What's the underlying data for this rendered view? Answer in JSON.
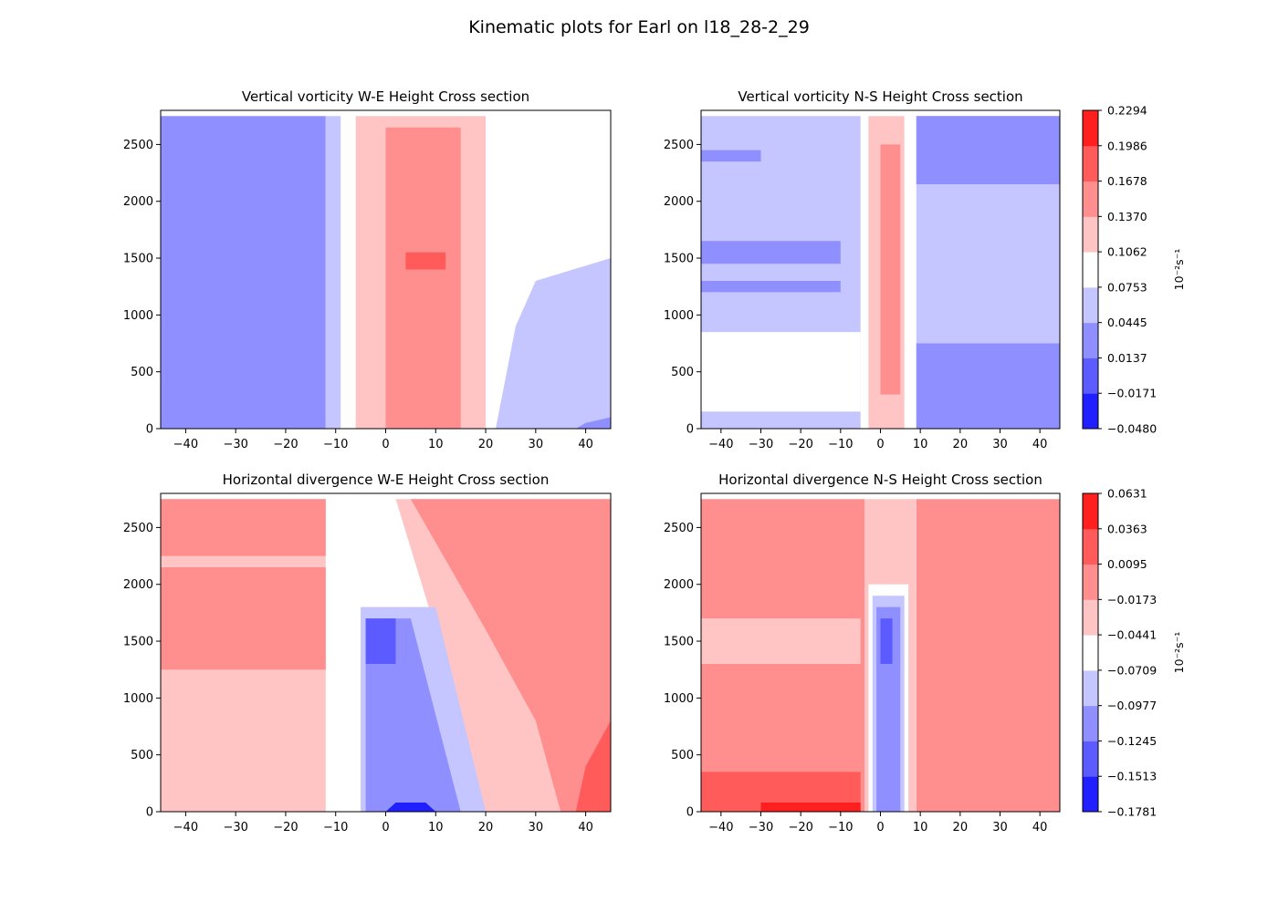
{
  "figure": {
    "title": "Kinematic plots for Earl on l18_28-2_29"
  },
  "colors": {
    "levels": [
      "#1f1fff",
      "#5b5bff",
      "#8f8fff",
      "#c5c5ff",
      "#ffffff",
      "#ffc5c5",
      "#ff8f8f",
      "#ff5b5b",
      "#ff1f1f"
    ]
  },
  "chart_data": [
    {
      "type": "contourf",
      "title": "Vertical vorticity W-E Height Cross section",
      "xlim": [
        -45,
        45
      ],
      "ylim": [
        0,
        2800
      ],
      "xticks": [
        -40,
        -30,
        -20,
        -10,
        0,
        10,
        20,
        30,
        40
      ],
      "yticks": [
        0,
        500,
        1000,
        1500,
        2000,
        2500
      ],
      "colorbar": {
        "levels": [
          "−0.0480",
          "−0.0171",
          "0.0137",
          "0.0445",
          "0.0753",
          "0.1062",
          "0.1370",
          "0.1678",
          "0.1986",
          "0.2294"
        ],
        "unit_label": "10⁻²s⁻¹"
      },
      "regions": [
        {
          "level": 2,
          "polygon": [
            [
              -45,
              0
            ],
            [
              -12,
              0
            ],
            [
              -12,
              2750
            ],
            [
              -45,
              2750
            ]
          ]
        },
        {
          "level": 3,
          "polygon": [
            [
              -12,
              0
            ],
            [
              -9,
              0
            ],
            [
              -9,
              2750
            ],
            [
              -12,
              2750
            ]
          ]
        },
        {
          "level": 3,
          "polygon": [
            [
              22,
              0
            ],
            [
              45,
              0
            ],
            [
              45,
              1500
            ],
            [
              30,
              1300
            ],
            [
              26,
              900
            ],
            [
              22,
              0
            ]
          ]
        },
        {
          "level": 2,
          "polygon": [
            [
              38,
              0
            ],
            [
              45,
              0
            ],
            [
              45,
              100
            ],
            [
              40,
              50
            ]
          ]
        },
        {
          "level": 5,
          "polygon": [
            [
              -6,
              0
            ],
            [
              20,
              0
            ],
            [
              20,
              2750
            ],
            [
              -6,
              2750
            ]
          ]
        },
        {
          "level": 6,
          "polygon": [
            [
              0,
              0
            ],
            [
              15,
              0
            ],
            [
              15,
              2650
            ],
            [
              0,
              2650
            ]
          ]
        },
        {
          "level": 7,
          "polygon": [
            [
              4,
              1400
            ],
            [
              12,
              1400
            ],
            [
              12,
              1550
            ],
            [
              4,
              1550
            ]
          ]
        }
      ]
    },
    {
      "type": "contourf",
      "title": "Vertical vorticity N-S Height Cross section",
      "xlim": [
        -45,
        45
      ],
      "ylim": [
        0,
        2800
      ],
      "xticks": [
        -40,
        -30,
        -20,
        -10,
        0,
        10,
        20,
        30,
        40
      ],
      "yticks": [
        0,
        500,
        1000,
        1500,
        2000,
        2500
      ],
      "colorbar": {
        "levels": [
          "−0.0480",
          "−0.0171",
          "0.0137",
          "0.0445",
          "0.0753",
          "0.1062",
          "0.1370",
          "0.1678",
          "0.1986",
          "0.2294"
        ],
        "unit_label": "10⁻²s⁻¹"
      },
      "regions": [
        {
          "level": 3,
          "polygon": [
            [
              -45,
              0
            ],
            [
              -5,
              0
            ],
            [
              -5,
              2750
            ],
            [
              -45,
              2750
            ]
          ]
        },
        {
          "level": 2,
          "polygon": [
            [
              -45,
              1450
            ],
            [
              -10,
              1450
            ],
            [
              -10,
              1650
            ],
            [
              -45,
              1650
            ]
          ]
        },
        {
          "level": 2,
          "polygon": [
            [
              -45,
              1200
            ],
            [
              -10,
              1200
            ],
            [
              -10,
              1300
            ],
            [
              -45,
              1300
            ]
          ]
        },
        {
          "level": 2,
          "polygon": [
            [
              -45,
              2350
            ],
            [
              -30,
              2350
            ],
            [
              -30,
              2450
            ],
            [
              -45,
              2450
            ]
          ]
        },
        {
          "level": 4,
          "polygon": [
            [
              -45,
              150
            ],
            [
              -5,
              150
            ],
            [
              -5,
              850
            ],
            [
              -45,
              850
            ]
          ]
        },
        {
          "level": 3,
          "polygon": [
            [
              9,
              0
            ],
            [
              45,
              0
            ],
            [
              45,
              2750
            ],
            [
              9,
              2750
            ]
          ]
        },
        {
          "level": 2,
          "polygon": [
            [
              9,
              0
            ],
            [
              45,
              0
            ],
            [
              45,
              750
            ],
            [
              9,
              750
            ]
          ]
        },
        {
          "level": 2,
          "polygon": [
            [
              9,
              2150
            ],
            [
              45,
              2150
            ],
            [
              45,
              2750
            ],
            [
              9,
              2750
            ]
          ]
        },
        {
          "level": 4,
          "polygon": [
            [
              -4,
              0
            ],
            [
              8,
              0
            ],
            [
              8,
              2750
            ],
            [
              -4,
              2750
            ]
          ]
        },
        {
          "level": 5,
          "polygon": [
            [
              -3,
              0
            ],
            [
              6,
              0
            ],
            [
              6,
              2750
            ],
            [
              -3,
              2750
            ]
          ]
        },
        {
          "level": 6,
          "polygon": [
            [
              0,
              300
            ],
            [
              5,
              300
            ],
            [
              5,
              2500
            ],
            [
              0,
              2500
            ]
          ]
        }
      ]
    },
    {
      "type": "contourf",
      "title": "Horizontal divergence W-E Height Cross section",
      "xlim": [
        -45,
        45
      ],
      "ylim": [
        0,
        2800
      ],
      "xticks": [
        -40,
        -30,
        -20,
        -10,
        0,
        10,
        20,
        30,
        40
      ],
      "yticks": [
        0,
        500,
        1000,
        1500,
        2000,
        2500
      ],
      "colorbar": {
        "levels": [
          "−0.1781",
          "−0.1513",
          "−0.1245",
          "−0.0977",
          "−0.0709",
          "−0.0441",
          "−0.0173",
          "0.0095",
          "0.0363",
          "0.0631"
        ],
        "unit_label": "10⁻²s⁻¹"
      },
      "regions": [
        {
          "level": 5,
          "polygon": [
            [
              -45,
              0
            ],
            [
              -12,
              0
            ],
            [
              -12,
              2750
            ],
            [
              -45,
              2750
            ]
          ]
        },
        {
          "level": 6,
          "polygon": [
            [
              -45,
              1250
            ],
            [
              -12,
              1250
            ],
            [
              -12,
              2150
            ],
            [
              -45,
              2150
            ]
          ]
        },
        {
          "level": 6,
          "polygon": [
            [
              -45,
              2250
            ],
            [
              -12,
              2250
            ],
            [
              -12,
              2750
            ],
            [
              -45,
              2750
            ]
          ]
        },
        {
          "level": 4,
          "polygon": [
            [
              -10,
              0
            ],
            [
              25,
              0
            ],
            [
              10,
              1500
            ],
            [
              0,
              2200
            ],
            [
              -10,
              2200
            ]
          ]
        },
        {
          "level": 5,
          "polygon": [
            [
              20,
              0
            ],
            [
              45,
              0
            ],
            [
              45,
              2750
            ],
            [
              2,
              2750
            ],
            [
              10,
              1600
            ]
          ]
        },
        {
          "level": 6,
          "polygon": [
            [
              35,
              0
            ],
            [
              45,
              0
            ],
            [
              45,
              2750
            ],
            [
              5,
              2750
            ],
            [
              20,
              1600
            ],
            [
              30,
              800
            ]
          ]
        },
        {
          "level": 7,
          "polygon": [
            [
              38,
              0
            ],
            [
              45,
              0
            ],
            [
              45,
              800
            ],
            [
              40,
              400
            ]
          ]
        },
        {
          "level": 3,
          "polygon": [
            [
              -5,
              0
            ],
            [
              20,
              0
            ],
            [
              10,
              1800
            ],
            [
              -5,
              1800
            ]
          ]
        },
        {
          "level": 2,
          "polygon": [
            [
              -4,
              0
            ],
            [
              15,
              0
            ],
            [
              5,
              1700
            ],
            [
              -4,
              1700
            ]
          ]
        },
        {
          "level": 1,
          "polygon": [
            [
              -4,
              1300
            ],
            [
              2,
              1300
            ],
            [
              2,
              1700
            ],
            [
              -4,
              1700
            ]
          ]
        },
        {
          "level": 0,
          "polygon": [
            [
              0,
              0
            ],
            [
              10,
              0
            ],
            [
              8,
              80
            ],
            [
              2,
              80
            ]
          ]
        }
      ]
    },
    {
      "type": "contourf",
      "title": "Horizontal divergence N-S Height Cross section",
      "xlim": [
        -45,
        45
      ],
      "ylim": [
        0,
        2800
      ],
      "xticks": [
        -40,
        -30,
        -20,
        -10,
        0,
        10,
        20,
        30,
        40
      ],
      "yticks": [
        0,
        500,
        1000,
        1500,
        2000,
        2500
      ],
      "colorbar": {
        "levels": [
          "−0.1781",
          "−0.1513",
          "−0.1245",
          "−0.0977",
          "−0.0709",
          "−0.0441",
          "−0.0173",
          "0.0095",
          "0.0363",
          "0.0631"
        ],
        "unit_label": "10⁻²s⁻¹"
      },
      "regions": [
        {
          "level": 6,
          "polygon": [
            [
              -45,
              0
            ],
            [
              -4,
              0
            ],
            [
              -4,
              2750
            ],
            [
              -45,
              2750
            ]
          ]
        },
        {
          "level": 5,
          "polygon": [
            [
              -45,
              1300
            ],
            [
              -5,
              1300
            ],
            [
              -5,
              1700
            ],
            [
              -45,
              1700
            ]
          ]
        },
        {
          "level": 7,
          "polygon": [
            [
              -45,
              0
            ],
            [
              -5,
              0
            ],
            [
              -5,
              350
            ],
            [
              -45,
              350
            ]
          ]
        },
        {
          "level": 8,
          "polygon": [
            [
              -30,
              0
            ],
            [
              -5,
              0
            ],
            [
              -5,
              80
            ],
            [
              -30,
              80
            ]
          ]
        },
        {
          "level": 6,
          "polygon": [
            [
              9,
              0
            ],
            [
              45,
              0
            ],
            [
              45,
              2750
            ],
            [
              9,
              2750
            ]
          ]
        },
        {
          "level": 5,
          "polygon": [
            [
              -4,
              0
            ],
            [
              9,
              0
            ],
            [
              9,
              2750
            ],
            [
              -4,
              2750
            ]
          ]
        },
        {
          "level": 4,
          "polygon": [
            [
              -3,
              0
            ],
            [
              7,
              0
            ],
            [
              7,
              2000
            ],
            [
              -3,
              2000
            ]
          ]
        },
        {
          "level": 3,
          "polygon": [
            [
              -2,
              0
            ],
            [
              6,
              0
            ],
            [
              6,
              1900
            ],
            [
              -2,
              1900
            ]
          ]
        },
        {
          "level": 2,
          "polygon": [
            [
              -1,
              0
            ],
            [
              5,
              0
            ],
            [
              5,
              1800
            ],
            [
              -1,
              1800
            ]
          ]
        },
        {
          "level": 1,
          "polygon": [
            [
              0,
              1300
            ],
            [
              3,
              1300
            ],
            [
              3,
              1700
            ],
            [
              0,
              1700
            ]
          ]
        }
      ]
    }
  ]
}
